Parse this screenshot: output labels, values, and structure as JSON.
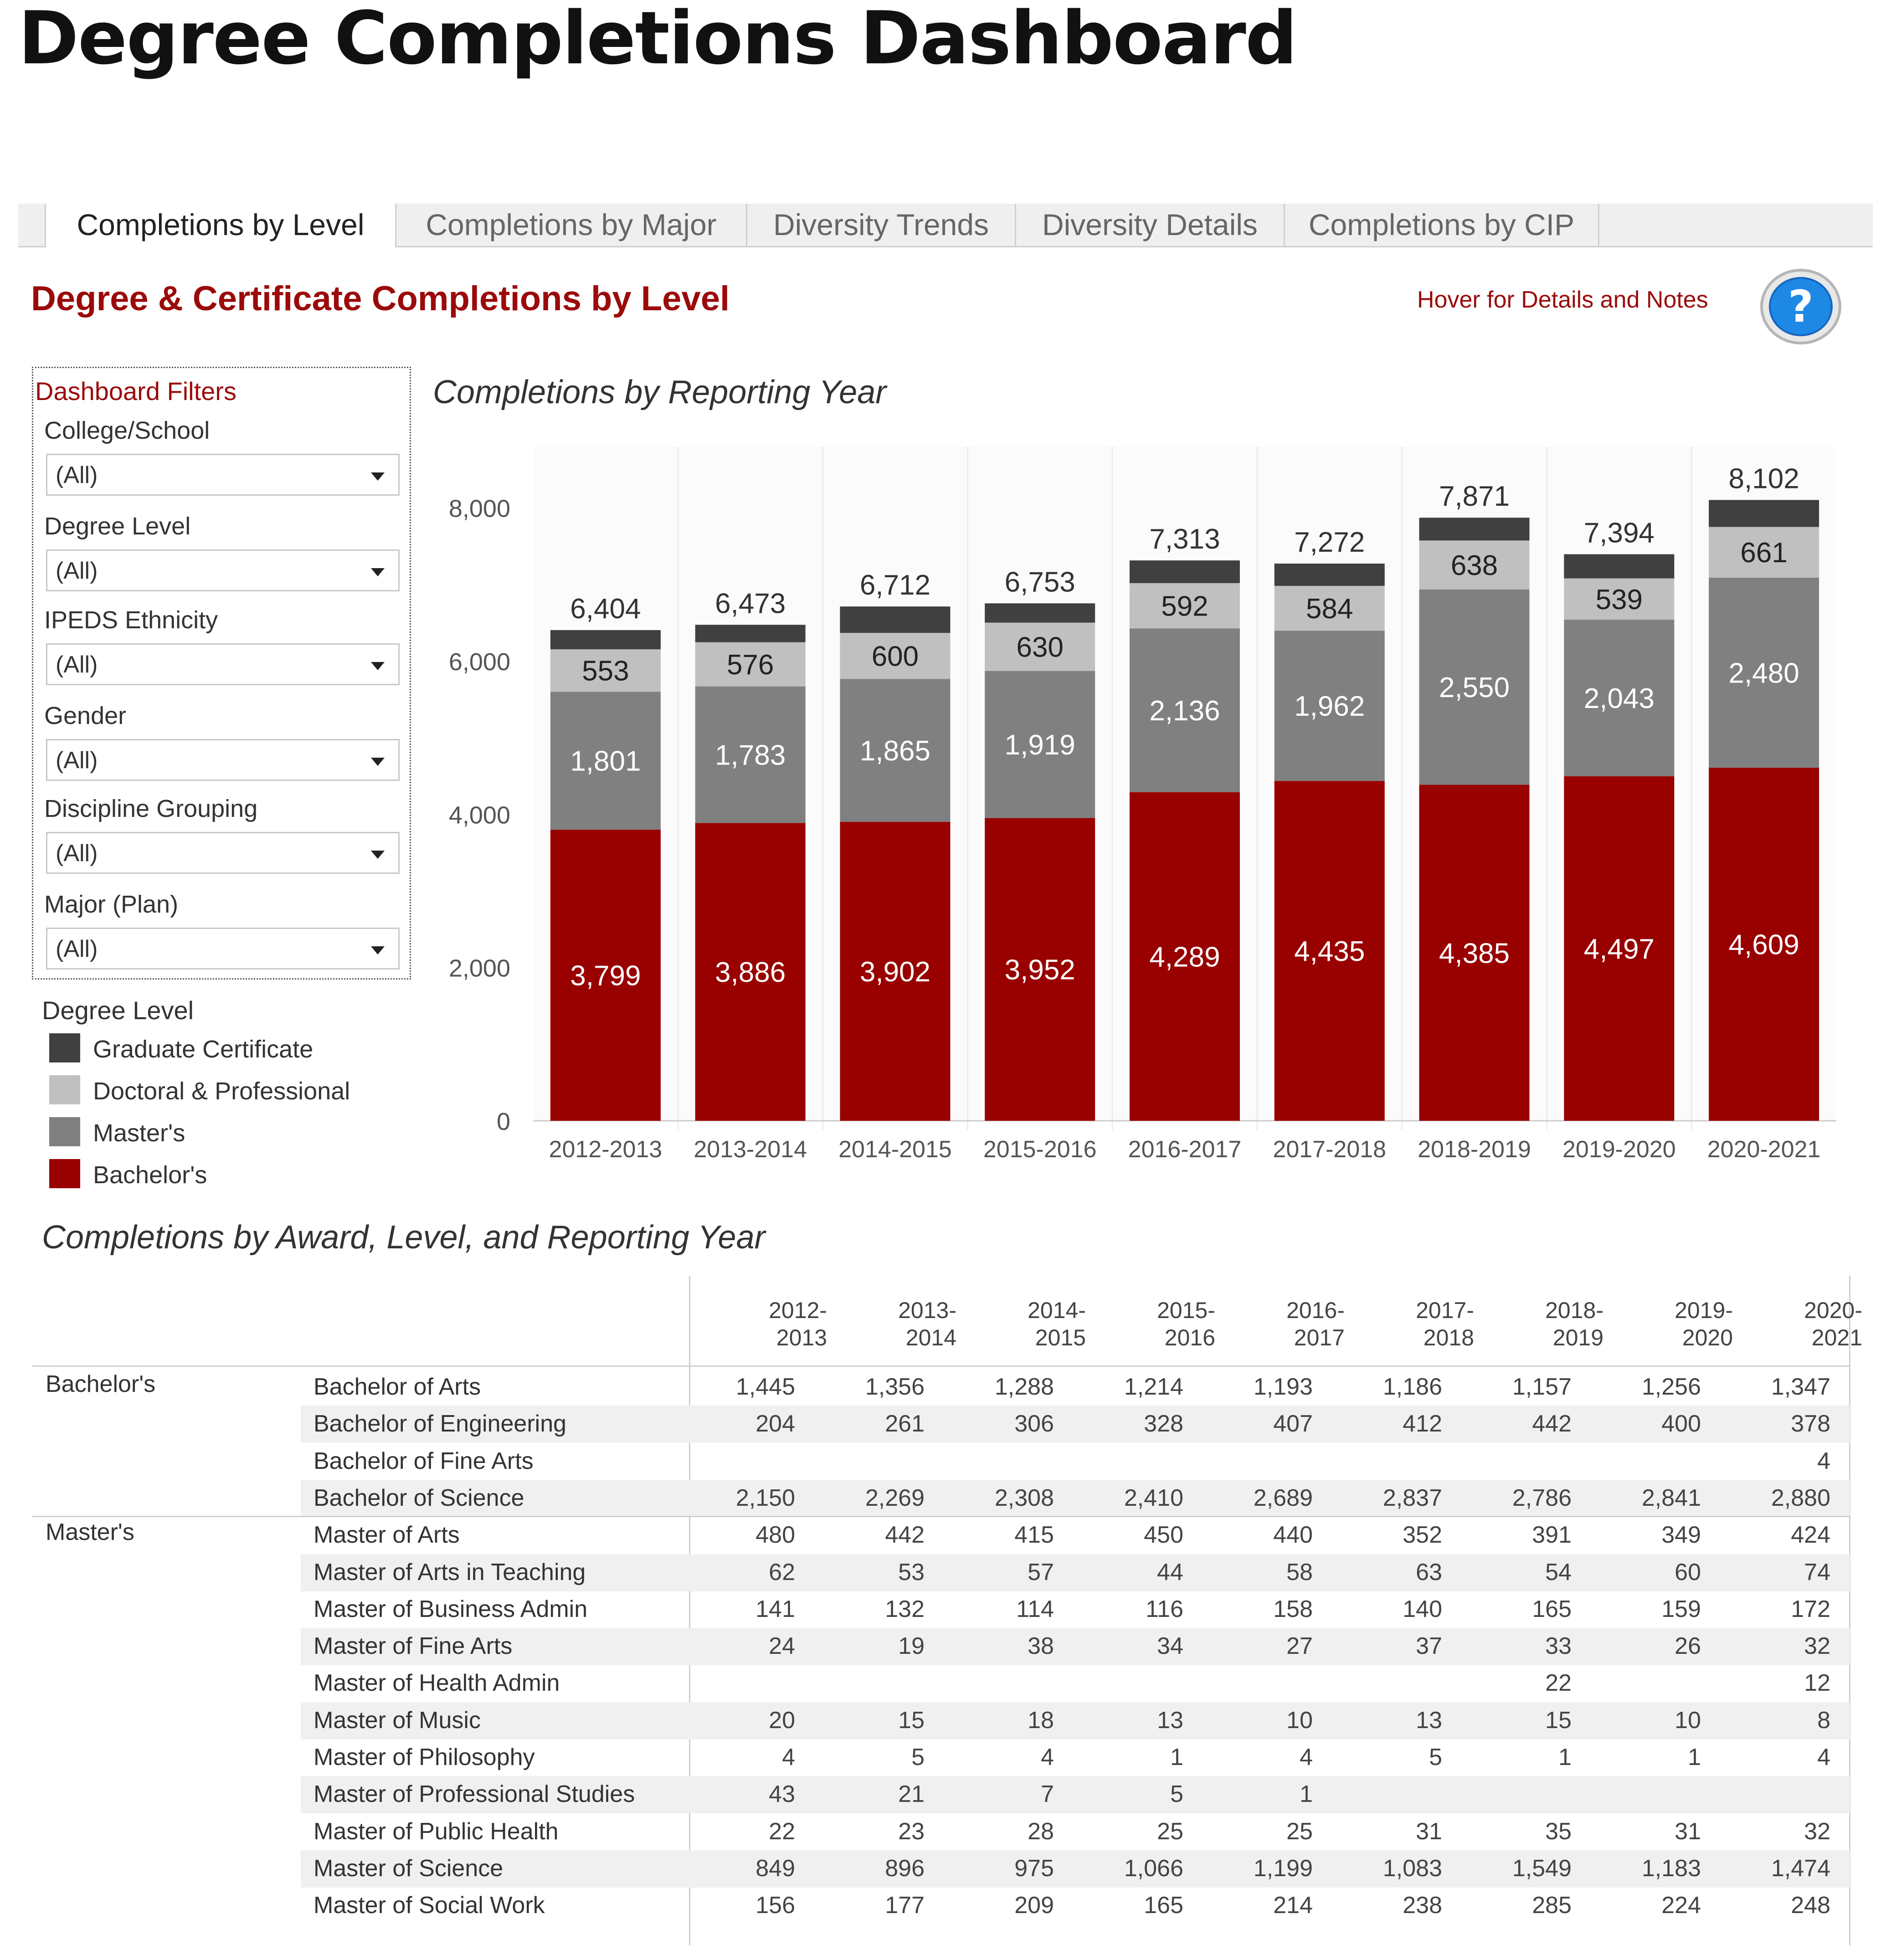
{
  "title": "Degree Completions Dashboard",
  "tabs": [
    "Completions by Level",
    "Completions by Major",
    "Diversity Trends",
    "Diversity Details",
    "Completions by CIP"
  ],
  "section_title": "Degree & Certificate Completions by Level",
  "hover_note": "Hover for Details and Notes",
  "help_symbol": "?",
  "filters": {
    "heading": "Dashboard Filters",
    "items": [
      {
        "label": "College/School",
        "value": "(All)"
      },
      {
        "label": "Degree Level",
        "value": "(All)"
      },
      {
        "label": "IPEDS Ethnicity",
        "value": "(All)"
      },
      {
        "label": "Gender",
        "value": "(All)"
      },
      {
        "label": "Discipline Grouping",
        "value": "(All)"
      },
      {
        "label": "Major (Plan)",
        "value": "(All)"
      }
    ]
  },
  "legend": {
    "title": "Degree Level",
    "items": [
      {
        "label": "Graduate Certificate",
        "color": "#404040"
      },
      {
        "label": "Doctoral & Professional",
        "color": "#c0c0c0"
      },
      {
        "label": "Master's",
        "color": "#808080"
      },
      {
        "label": "Bachelor's",
        "color": "#990000"
      }
    ]
  },
  "chart_data": {
    "type": "bar",
    "stacked": true,
    "title": "Completions by Reporting Year",
    "categories": [
      "2012-2013",
      "2013-2014",
      "2014-2015",
      "2015-2016",
      "2016-2017",
      "2017-2018",
      "2018-2019",
      "2019-2020",
      "2020-2021"
    ],
    "series": [
      {
        "name": "Bachelor's",
        "color": "#990000",
        "values": [
          3799,
          3886,
          3902,
          3952,
          4289,
          4435,
          4385,
          4497,
          4609
        ],
        "labels": [
          "3,799",
          "3,886",
          "3,902",
          "3,952",
          "4,289",
          "4,435",
          "4,385",
          "4,497",
          "4,609"
        ]
      },
      {
        "name": "Master's",
        "color": "#808080",
        "values": [
          1801,
          1783,
          1865,
          1919,
          2136,
          1962,
          2550,
          2043,
          2480
        ],
        "labels": [
          "1,801",
          "1,783",
          "1,865",
          "1,919",
          "2,136",
          "1,962",
          "2,550",
          "2,043",
          "2,480"
        ]
      },
      {
        "name": "Doctoral & Professional",
        "color": "#c0c0c0",
        "values": [
          553,
          576,
          600,
          630,
          592,
          584,
          638,
          539,
          661
        ],
        "labels": [
          "553",
          "576",
          "600",
          "630",
          "592",
          "584",
          "638",
          "539",
          "661"
        ]
      },
      {
        "name": "Graduate Certificate",
        "color": "#404040",
        "values": [
          251,
          228,
          345,
          252,
          296,
          291,
          298,
          315,
          352
        ],
        "labels": []
      }
    ],
    "totals": [
      6404,
      6473,
      6712,
      6753,
      7313,
      7272,
      7871,
      7394,
      8102
    ],
    "total_labels": [
      "6,404",
      "6,473",
      "6,712",
      "6,753",
      "7,313",
      "7,272",
      "7,871",
      "7,394",
      "8,102"
    ],
    "ylim": [
      0,
      8800
    ],
    "yticks": [
      0,
      2000,
      4000,
      6000,
      8000
    ],
    "ytick_labels": [
      "0",
      "2,000",
      "4,000",
      "6,000",
      "8,000"
    ],
    "xlabel": "",
    "ylabel": ""
  },
  "table": {
    "title": "Completions by Award, Level, and Reporting Year",
    "year_headers": [
      [
        "2012-",
        "2013"
      ],
      [
        "2013-",
        "2014"
      ],
      [
        "2014-",
        "2015"
      ],
      [
        "2015-",
        "2016"
      ],
      [
        "2016-",
        "2017"
      ],
      [
        "2017-",
        "2018"
      ],
      [
        "2018-",
        "2019"
      ],
      [
        "2019-",
        "2020"
      ],
      [
        "2020-",
        "2021"
      ]
    ],
    "rows": [
      {
        "group": "Bachelor's",
        "award": "Bachelor of Arts",
        "values": [
          "1,445",
          "1,356",
          "1,288",
          "1,214",
          "1,193",
          "1,186",
          "1,157",
          "1,256",
          "1,347"
        ]
      },
      {
        "group": "",
        "award": "Bachelor of Engineering",
        "values": [
          "204",
          "261",
          "306",
          "328",
          "407",
          "412",
          "442",
          "400",
          "378"
        ]
      },
      {
        "group": "",
        "award": "Bachelor of Fine Arts",
        "values": [
          "",
          "",
          "",
          "",
          "",
          "",
          "",
          "",
          "4"
        ]
      },
      {
        "group": "",
        "award": "Bachelor of Science",
        "values": [
          "2,150",
          "2,269",
          "2,308",
          "2,410",
          "2,689",
          "2,837",
          "2,786",
          "2,841",
          "2,880"
        ]
      },
      {
        "group": "Master's",
        "award": "Master of Arts",
        "values": [
          "480",
          "442",
          "415",
          "450",
          "440",
          "352",
          "391",
          "349",
          "424"
        ]
      },
      {
        "group": "",
        "award": "Master of Arts in Teaching",
        "values": [
          "62",
          "53",
          "57",
          "44",
          "58",
          "63",
          "54",
          "60",
          "74"
        ]
      },
      {
        "group": "",
        "award": "Master of Business Admin",
        "values": [
          "141",
          "132",
          "114",
          "116",
          "158",
          "140",
          "165",
          "159",
          "172"
        ]
      },
      {
        "group": "",
        "award": "Master of Fine Arts",
        "values": [
          "24",
          "19",
          "38",
          "34",
          "27",
          "37",
          "33",
          "26",
          "32"
        ]
      },
      {
        "group": "",
        "award": "Master of Health Admin",
        "values": [
          "",
          "",
          "",
          "",
          "",
          "",
          "22",
          "",
          "12"
        ]
      },
      {
        "group": "",
        "award": "Master of Music",
        "values": [
          "20",
          "15",
          "18",
          "13",
          "10",
          "13",
          "15",
          "10",
          "8"
        ]
      },
      {
        "group": "",
        "award": "Master of Philosophy",
        "values": [
          "4",
          "5",
          "4",
          "1",
          "4",
          "5",
          "1",
          "1",
          "4"
        ]
      },
      {
        "group": "",
        "award": "Master of Professional Studies",
        "values": [
          "43",
          "21",
          "7",
          "5",
          "1",
          "",
          "",
          "",
          ""
        ]
      },
      {
        "group": "",
        "award": "Master of Public Health",
        "values": [
          "22",
          "23",
          "28",
          "25",
          "25",
          "31",
          "35",
          "31",
          "32"
        ]
      },
      {
        "group": "",
        "award": "Master of Science",
        "values": [
          "849",
          "896",
          "975",
          "1,066",
          "1,199",
          "1,083",
          "1,549",
          "1,183",
          "1,474"
        ]
      },
      {
        "group": "",
        "award": "Master of Social Work",
        "values": [
          "156",
          "177",
          "209",
          "165",
          "214",
          "238",
          "285",
          "224",
          "248"
        ]
      }
    ]
  }
}
